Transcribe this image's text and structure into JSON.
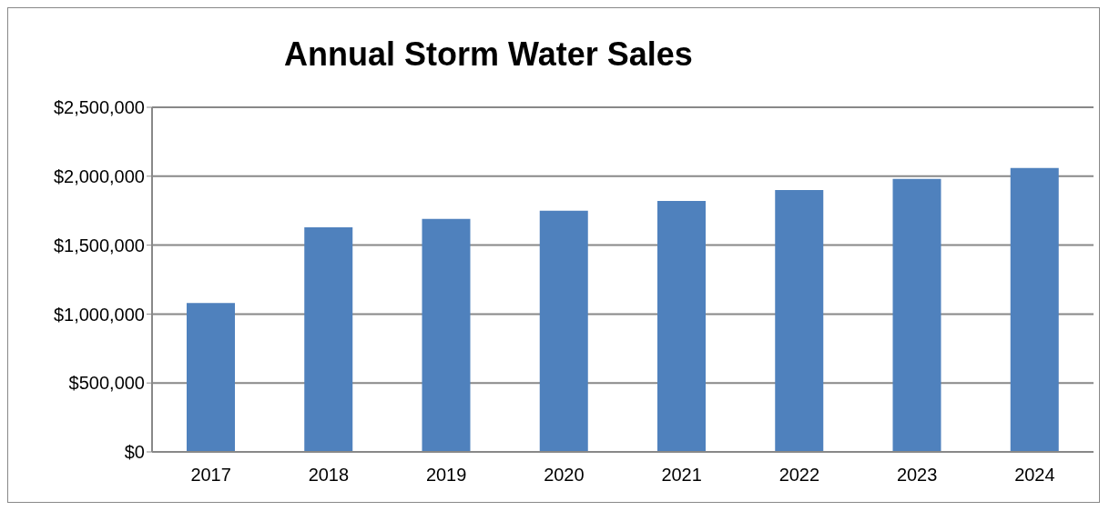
{
  "chart_data": {
    "type": "bar",
    "title": "Annual Storm Water Sales",
    "categories": [
      "2017",
      "2018",
      "2019",
      "2020",
      "2021",
      "2022",
      "2023",
      "2024"
    ],
    "values": [
      1080000,
      1630000,
      1690000,
      1750000,
      1820000,
      1900000,
      1980000,
      2060000
    ],
    "color": "#4f81bd",
    "ylim": [
      0,
      2500000
    ],
    "yticks": [
      {
        "value": 0,
        "label": "$0"
      },
      {
        "value": 500000,
        "label": "$500,000"
      },
      {
        "value": 1000000,
        "label": "$1,000,000"
      },
      {
        "value": 1500000,
        "label": "$1,500,000"
      },
      {
        "value": 2000000,
        "label": "$2,000,000"
      },
      {
        "value": 2500000,
        "label": "$2,500,000"
      }
    ],
    "grid": "y",
    "legend": false
  }
}
